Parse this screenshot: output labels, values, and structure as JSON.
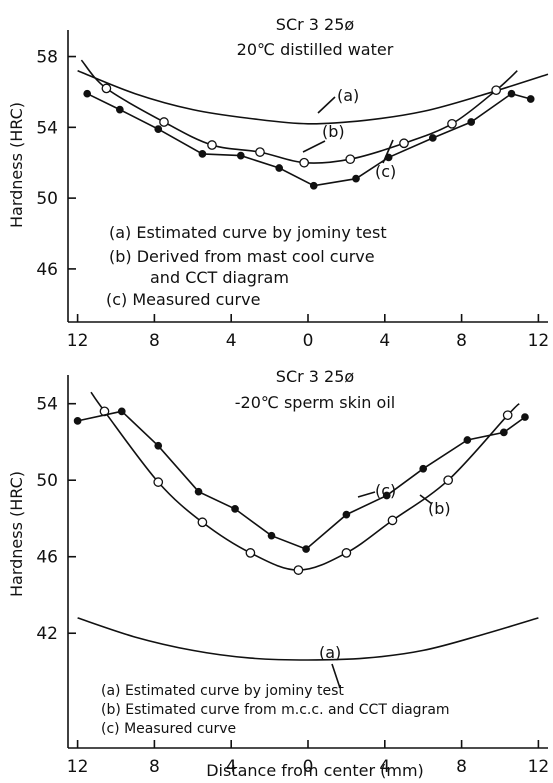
{
  "xlabel": "Distance from center (mm)",
  "chart_data": [
    {
      "type": "line",
      "title": "SCr 3 25ø",
      "subtitle": "20℃ distilled water",
      "ylabel": "Hardness (HRC)",
      "xlim": [
        -12.5,
        12.5
      ],
      "ylim": [
        43,
        59.5
      ],
      "x_ticks": [
        -12,
        -8,
        -4,
        0,
        4,
        8,
        12
      ],
      "x_tick_labels": [
        "12",
        "8",
        "4",
        "0",
        "4",
        "8",
        "12"
      ],
      "y_ticks": [
        46,
        50,
        54,
        58
      ],
      "y_tick_labels": [
        "46",
        "50",
        "54",
        "58"
      ],
      "grid": false,
      "legend": [
        "(a) Estimated curve by jominy test",
        "(b) Derived from mast cool curve",
        "and CCT diagram",
        "(c) Measured curve"
      ],
      "series": [
        {
          "name": "(a)",
          "marker": "none",
          "x": [
            -12,
            -9,
            -6,
            -3,
            0,
            3,
            6,
            9,
            12.5
          ],
          "y": [
            57.2,
            55.9,
            55.0,
            54.5,
            54.2,
            54.4,
            54.9,
            55.8,
            57.0
          ]
        },
        {
          "name": "(b)",
          "marker": "open",
          "x": [
            -10.5,
            -7.5,
            -5,
            -2.5,
            -0.2,
            2.2,
            5,
            7.5,
            9.8
          ],
          "y": [
            56.2,
            54.3,
            53.0,
            52.6,
            52.0,
            52.2,
            53.1,
            54.2,
            56.1
          ],
          "curve_x": [
            -11.8,
            -10.5,
            -7.5,
            -5,
            -2.5,
            -0.2,
            2.2,
            5,
            7.5,
            9.8,
            10.9
          ],
          "curve_y": [
            57.8,
            56.2,
            54.3,
            53.0,
            52.6,
            52.0,
            52.2,
            53.1,
            54.2,
            56.1,
            57.2
          ]
        },
        {
          "name": "(c)",
          "marker": "filled",
          "x": [
            -11.5,
            -9.8,
            -7.8,
            -5.5,
            -3.5,
            -1.5,
            0.3,
            2.5,
            4.2,
            6.5,
            8.5,
            10.6,
            11.6
          ],
          "y": [
            55.9,
            55.0,
            53.9,
            52.5,
            52.4,
            51.7,
            50.7,
            51.1,
            52.3,
            53.4,
            54.3,
            55.9,
            55.6
          ]
        }
      ],
      "annotations": [
        "(a)",
        "(b)",
        "(c)"
      ]
    },
    {
      "type": "line",
      "title": "SCr 3 25ø",
      "subtitle": "-20℃ sperm skin oil",
      "ylabel": "Hardness (HRC)",
      "xlim": [
        -12.5,
        12.5
      ],
      "ylim": [
        36,
        55.5
      ],
      "x_ticks": [
        -12,
        -8,
        -4,
        0,
        4,
        8,
        12
      ],
      "x_tick_labels": [
        "12",
        "8",
        "4",
        "0",
        "4",
        "8",
        "12"
      ],
      "y_ticks": [
        42,
        46,
        50,
        54
      ],
      "y_tick_labels": [
        "42",
        "46",
        "50",
        "54"
      ],
      "grid": false,
      "legend": [
        "(a) Estimated curve by jominy test",
        "(b) Estimated curve from m.c.c. and CCT diagram",
        "(c) Measured curve"
      ],
      "series": [
        {
          "name": "(a)",
          "marker": "none",
          "x": [
            -12,
            -9,
            -6,
            -3,
            0,
            3,
            6,
            9,
            12
          ],
          "y": [
            42.8,
            41.8,
            41.1,
            40.7,
            40.6,
            40.7,
            41.1,
            41.9,
            42.8
          ]
        },
        {
          "name": "(b)",
          "marker": "open",
          "x": [
            -10.6,
            -7.8,
            -5.5,
            -3,
            -0.5,
            2,
            4.4,
            7.3,
            10.4
          ],
          "y": [
            53.6,
            49.9,
            47.8,
            46.2,
            45.3,
            46.2,
            47.9,
            50.0,
            53.4
          ],
          "curve_x": [
            -11.3,
            -10.6,
            -7.8,
            -5.5,
            -3,
            -0.5,
            2,
            4.4,
            7.3,
            10.4,
            11.0
          ],
          "curve_y": [
            54.6,
            53.6,
            49.9,
            47.8,
            46.2,
            45.3,
            46.2,
            47.9,
            50.0,
            53.4,
            54.0
          ]
        },
        {
          "name": "(c)",
          "marker": "filled",
          "x": [
            -12,
            -9.7,
            -7.8,
            -5.7,
            -3.8,
            -1.9,
            -0.1,
            2,
            4.1,
            6,
            8.3,
            10.2,
            11.3
          ],
          "y": [
            53.1,
            53.6,
            51.8,
            49.4,
            48.5,
            47.1,
            46.4,
            48.2,
            49.2,
            50.6,
            52.1,
            52.5,
            53.3
          ]
        }
      ],
      "annotations": [
        "(a)",
        "(b)",
        "(c)"
      ]
    }
  ]
}
